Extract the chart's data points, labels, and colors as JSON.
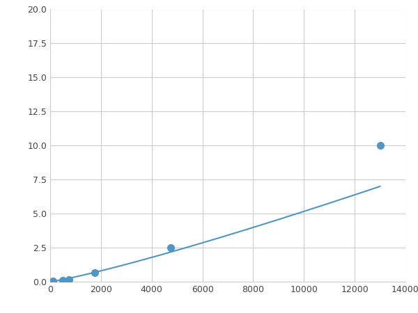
{
  "x_points": [
    100,
    500,
    750,
    1750,
    4750,
    13000
  ],
  "y_points": [
    0.05,
    0.1,
    0.13,
    0.65,
    2.5,
    10.0
  ],
  "line_color": "#4f96c8",
  "marker_color": "#4f96c8",
  "marker_size": 7,
  "xlim": [
    0,
    14000
  ],
  "ylim": [
    0,
    20.0
  ],
  "xticks": [
    0,
    2000,
    4000,
    6000,
    8000,
    10000,
    12000,
    14000
  ],
  "yticks": [
    0.0,
    2.5,
    5.0,
    7.5,
    10.0,
    12.5,
    15.0,
    17.5,
    20.0
  ],
  "grid_color": "#cccccc",
  "background_color": "#ffffff",
  "marker_indices": [
    0,
    1,
    2,
    3,
    4,
    5
  ]
}
